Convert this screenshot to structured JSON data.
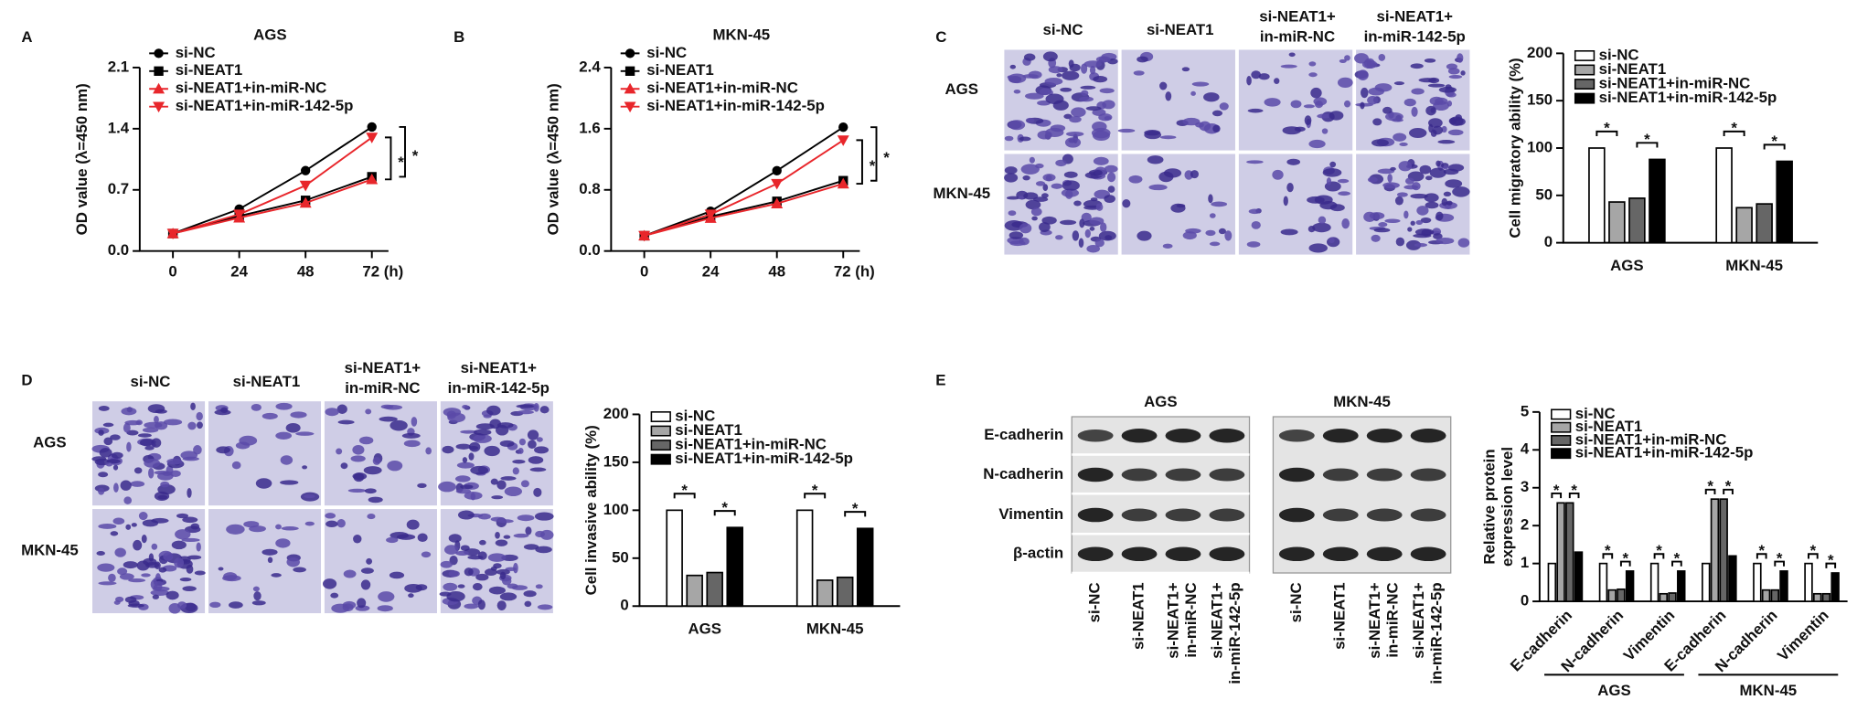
{
  "figure": {
    "panel_labels": [
      "A",
      "B",
      "C",
      "D",
      "E"
    ],
    "migration_images": {
      "columns": [
        "si-NC",
        "si-NEAT1",
        [
          "si-NEAT1+",
          "in-miR-NC"
        ],
        [
          "si-NEAT1+",
          "in-miR-142-5p"
        ]
      ],
      "rows": [
        "AGS",
        "MKN-45"
      ]
    },
    "invasion_images": {
      "columns": [
        "si-NC",
        "si-NEAT1",
        [
          "si-NEAT1+",
          "in-miR-NC"
        ],
        [
          "si-NEAT1+",
          "in-miR-142-5p"
        ]
      ],
      "rows": [
        "AGS",
        "MKN-45"
      ]
    },
    "western_blot": {
      "groups": [
        "AGS",
        "MKN-45"
      ],
      "rows": [
        "E-cadherin",
        "N-cadherin",
        "Vimentin",
        "β-actin"
      ],
      "lanes": [
        "si-NC",
        "si-NEAT1",
        [
          "si-NEAT1+",
          "in-miR-NC"
        ],
        [
          "si-NEAT1+",
          "in-miR-142-5p"
        ]
      ]
    }
  },
  "chart_data": [
    {
      "type": "line",
      "title": "AGS",
      "y_label": "OD value (λ=450 nm)",
      "x": [
        0,
        24,
        48,
        72
      ],
      "xlim": [
        -12,
        78
      ],
      "xticks": [
        0,
        24,
        48,
        {
          "value": 72,
          "label": "72 (h)"
        }
      ],
      "ylim": [
        0,
        2.1
      ],
      "yticks": [
        {
          "value": 0,
          "label": "0.0"
        },
        0.7,
        1.4,
        2.1
      ],
      "series": [
        {
          "name": "si-NC",
          "color": "#000000",
          "marker": "circle",
          "values": [
            0.2,
            0.48,
            0.92,
            1.42
          ]
        },
        {
          "name": "si-NEAT1",
          "color": "#000000",
          "marker": "square",
          "values": [
            0.2,
            0.4,
            0.58,
            0.85
          ]
        },
        {
          "name": "si-NEAT1+in-miR-NC",
          "color": "#e8262b",
          "marker": "triangle",
          "values": [
            0.2,
            0.38,
            0.55,
            0.82
          ]
        },
        {
          "name": "si-NEAT1+in-miR-142-5p",
          "color": "#e8262b",
          "marker": "triangle-down",
          "values": [
            0.2,
            0.42,
            0.75,
            1.3
          ]
        }
      ],
      "annotations": [
        "*",
        "*"
      ]
    },
    {
      "type": "line",
      "title": "MKN-45",
      "y_label": "OD value (λ=450 nm)",
      "x": [
        0,
        24,
        48,
        72
      ],
      "xlim": [
        -12,
        78
      ],
      "xticks": [
        0,
        24,
        48,
        {
          "value": 72,
          "label": "72 (h)"
        }
      ],
      "ylim": [
        0,
        2.4
      ],
      "yticks": [
        {
          "value": 0,
          "label": "0.0"
        },
        0.8,
        1.6,
        2.4
      ],
      "series": [
        {
          "name": "si-NC",
          "color": "#000000",
          "marker": "circle",
          "values": [
            0.2,
            0.52,
            1.05,
            1.62
          ]
        },
        {
          "name": "si-NEAT1",
          "color": "#000000",
          "marker": "square",
          "values": [
            0.2,
            0.45,
            0.65,
            0.92
          ]
        },
        {
          "name": "si-NEAT1+in-miR-NC",
          "color": "#e8262b",
          "marker": "triangle",
          "values": [
            0.2,
            0.43,
            0.62,
            0.88
          ]
        },
        {
          "name": "si-NEAT1+in-miR-142-5p",
          "color": "#e8262b",
          "marker": "triangle-down",
          "values": [
            0.2,
            0.48,
            0.88,
            1.45
          ]
        }
      ],
      "annotations": [
        "*",
        "*"
      ]
    },
    {
      "type": "bar",
      "y_label": "Cell migratory ability (%)",
      "categories": [
        "AGS",
        "MKN-45"
      ],
      "ylim": [
        0,
        200
      ],
      "yticks": [
        0,
        50,
        100,
        150,
        200
      ],
      "series": [
        {
          "name": "si-NC",
          "color": "#ffffff",
          "values": [
            100,
            100
          ]
        },
        {
          "name": "si-NEAT1",
          "color": "#a6a6a6",
          "values": [
            43,
            37
          ]
        },
        {
          "name": "si-NEAT1+in-miR-NC",
          "color": "#666666",
          "values": [
            47,
            41
          ]
        },
        {
          "name": "si-NEAT1+in-miR-142-5p",
          "color": "#000000",
          "values": [
            88,
            86
          ]
        }
      ],
      "annotations": [
        "*",
        "*",
        "*",
        "*"
      ]
    },
    {
      "type": "bar",
      "y_label": "Cell invasive ability (%)",
      "categories": [
        "AGS",
        "MKN-45"
      ],
      "ylim": [
        0,
        200
      ],
      "yticks": [
        0,
        50,
        100,
        150,
        200
      ],
      "series": [
        {
          "name": "si-NC",
          "color": "#ffffff",
          "values": [
            100,
            100
          ]
        },
        {
          "name": "si-NEAT1",
          "color": "#a6a6a6",
          "values": [
            32,
            27
          ]
        },
        {
          "name": "si-NEAT1+in-miR-NC",
          "color": "#666666",
          "values": [
            35,
            30
          ]
        },
        {
          "name": "si-NEAT1+in-miR-142-5p",
          "color": "#000000",
          "values": [
            82,
            81
          ]
        }
      ],
      "annotations": [
        "*",
        "*",
        "*",
        "*"
      ]
    },
    {
      "type": "bar",
      "y_label": [
        "Relative protein",
        "expression level"
      ],
      "categories": [
        "E-cadherin",
        "N-cadherin",
        "Vimentin",
        "E-cadherin",
        "N-cadherin",
        "Vimentin"
      ],
      "category_groups": [
        "AGS",
        "MKN-45"
      ],
      "ylim": [
        0,
        5
      ],
      "yticks": [
        0,
        1,
        2,
        3,
        4,
        5
      ],
      "series": [
        {
          "name": "si-NC",
          "color": "#ffffff",
          "values": [
            1,
            1,
            1,
            1,
            1,
            1
          ]
        },
        {
          "name": "si-NEAT1",
          "color": "#a6a6a6",
          "values": [
            2.6,
            0.3,
            0.2,
            2.7,
            0.3,
            0.2
          ]
        },
        {
          "name": "si-NEAT1+in-miR-NC",
          "color": "#666666",
          "values": [
            2.6,
            0.32,
            0.22,
            2.7,
            0.3,
            0.2
          ]
        },
        {
          "name": "si-NEAT1+in-miR-142-5p",
          "color": "#000000",
          "values": [
            1.3,
            0.8,
            0.8,
            1.2,
            0.8,
            0.75
          ]
        }
      ],
      "annotations": [
        "*",
        "*",
        "*",
        "*",
        "*",
        "*",
        "*",
        "*",
        "*",
        "*",
        "*",
        "*"
      ]
    }
  ]
}
